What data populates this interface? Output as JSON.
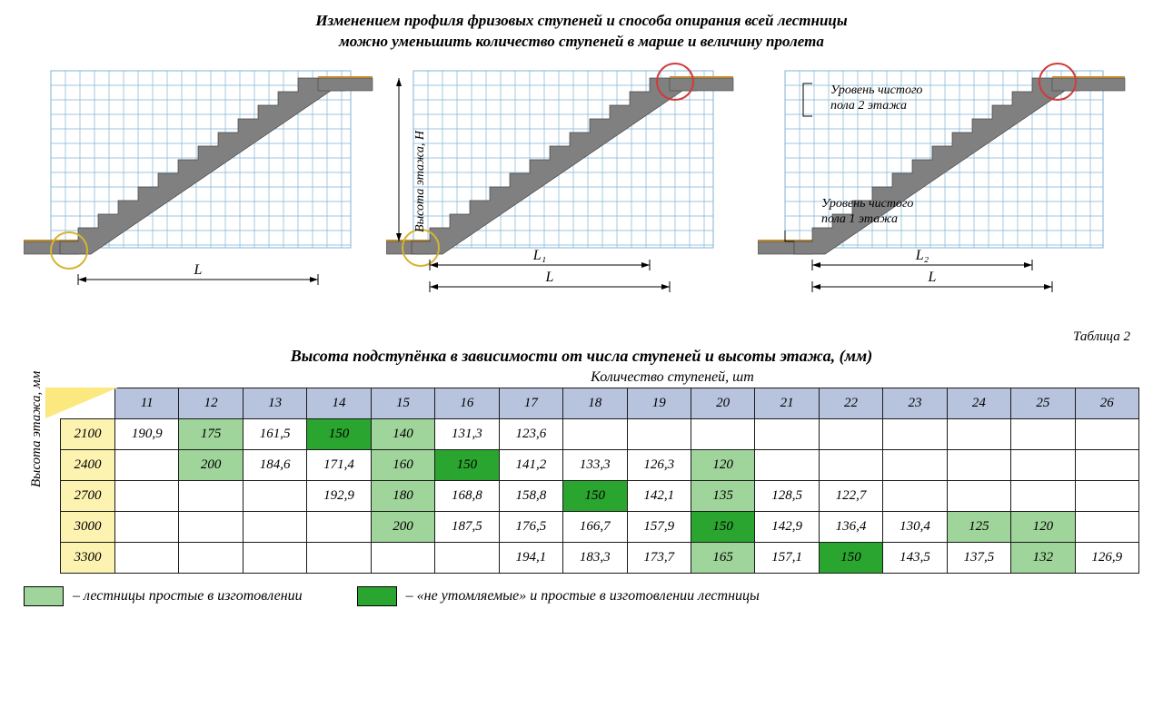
{
  "title_line1": "Изменением профиля фризовых ступеней и способа опирания всей лестницы",
  "title_line2": "можно уменьшить количество ступеней в марше и величину пролета",
  "height_axis_label": "Высота этажа, Н",
  "diagram_labels": {
    "d1_main": "L",
    "d2_main": "L",
    "d2_sub": "L₁",
    "d3_main": "L",
    "d3_sub": "L₂"
  },
  "floor_labels": {
    "floor2": "Уровень чистого\nпола 2 этажа",
    "floor1": "Уровень чистого\nпола 1 этажа"
  },
  "table_number": "Таблица 2",
  "table_title": "Высота подступёнка  в зависимости от числа ступеней и высоты этажа,  (мм)",
  "table_sup": "Количество ступеней, шт",
  "side_axis_label": "Высота этажа, мм",
  "columns": [
    "11",
    "12",
    "13",
    "14",
    "15",
    "16",
    "17",
    "18",
    "19",
    "20",
    "21",
    "22",
    "23",
    "24",
    "25",
    "26"
  ],
  "rows": [
    {
      "h": "2100",
      "cells": [
        {
          "v": "190,9",
          "c": 0
        },
        {
          "v": "175",
          "c": 1
        },
        {
          "v": "161,5",
          "c": 0
        },
        {
          "v": "150",
          "c": 2
        },
        {
          "v": "140",
          "c": 1
        },
        {
          "v": "131,3",
          "c": 0
        },
        {
          "v": "123,6",
          "c": 0
        },
        {
          "v": "",
          "c": 0
        },
        {
          "v": "",
          "c": 0
        },
        {
          "v": "",
          "c": 0
        },
        {
          "v": "",
          "c": 0
        },
        {
          "v": "",
          "c": 0
        },
        {
          "v": "",
          "c": 0
        },
        {
          "v": "",
          "c": 0
        },
        {
          "v": "",
          "c": 0
        },
        {
          "v": "",
          "c": 0
        }
      ]
    },
    {
      "h": "2400",
      "cells": [
        {
          "v": "",
          "c": 0
        },
        {
          "v": "200",
          "c": 1
        },
        {
          "v": "184,6",
          "c": 0
        },
        {
          "v": "171,4",
          "c": 0
        },
        {
          "v": "160",
          "c": 1
        },
        {
          "v": "150",
          "c": 2
        },
        {
          "v": "141,2",
          "c": 0
        },
        {
          "v": "133,3",
          "c": 0
        },
        {
          "v": "126,3",
          "c": 0
        },
        {
          "v": "120",
          "c": 1
        },
        {
          "v": "",
          "c": 0
        },
        {
          "v": "",
          "c": 0
        },
        {
          "v": "",
          "c": 0
        },
        {
          "v": "",
          "c": 0
        },
        {
          "v": "",
          "c": 0
        },
        {
          "v": "",
          "c": 0
        }
      ]
    },
    {
      "h": "2700",
      "cells": [
        {
          "v": "",
          "c": 0
        },
        {
          "v": "",
          "c": 0
        },
        {
          "v": "",
          "c": 0
        },
        {
          "v": "192,9",
          "c": 0
        },
        {
          "v": "180",
          "c": 1
        },
        {
          "v": "168,8",
          "c": 0
        },
        {
          "v": "158,8",
          "c": 0
        },
        {
          "v": "150",
          "c": 2
        },
        {
          "v": "142,1",
          "c": 0
        },
        {
          "v": "135",
          "c": 1
        },
        {
          "v": "128,5",
          "c": 0
        },
        {
          "v": "122,7",
          "c": 0
        },
        {
          "v": "",
          "c": 0
        },
        {
          "v": "",
          "c": 0
        },
        {
          "v": "",
          "c": 0
        },
        {
          "v": "",
          "c": 0
        }
      ]
    },
    {
      "h": "3000",
      "cells": [
        {
          "v": "",
          "c": 0
        },
        {
          "v": "",
          "c": 0
        },
        {
          "v": "",
          "c": 0
        },
        {
          "v": "",
          "c": 0
        },
        {
          "v": "200",
          "c": 1
        },
        {
          "v": "187,5",
          "c": 0
        },
        {
          "v": "176,5",
          "c": 0
        },
        {
          "v": "166,7",
          "c": 0
        },
        {
          "v": "157,9",
          "c": 0
        },
        {
          "v": "150",
          "c": 2
        },
        {
          "v": "142,9",
          "c": 0
        },
        {
          "v": "136,4",
          "c": 0
        },
        {
          "v": "130,4",
          "c": 0
        },
        {
          "v": "125",
          "c": 1
        },
        {
          "v": "120",
          "c": 1
        },
        {
          "v": "",
          "c": 0
        }
      ]
    },
    {
      "h": "3300",
      "cells": [
        {
          "v": "",
          "c": 0
        },
        {
          "v": "",
          "c": 0
        },
        {
          "v": "",
          "c": 0
        },
        {
          "v": "",
          "c": 0
        },
        {
          "v": "",
          "c": 0
        },
        {
          "v": "",
          "c": 0
        },
        {
          "v": "194,1",
          "c": 0
        },
        {
          "v": "183,3",
          "c": 0
        },
        {
          "v": "173,7",
          "c": 0
        },
        {
          "v": "165",
          "c": 1
        },
        {
          "v": "157,1",
          "c": 0
        },
        {
          "v": "150",
          "c": 2
        },
        {
          "v": "143,5",
          "c": 0
        },
        {
          "v": "137,5",
          "c": 0
        },
        {
          "v": "132",
          "c": 1
        },
        {
          "v": "126,9",
          "c": 0
        }
      ]
    }
  ],
  "colors": {
    "none": "#ffffff",
    "light": "#9fd49a",
    "dark": "#2aa52f",
    "header_bg": "#b8c4de",
    "rowhead_bg": "#fdf3b0",
    "grid": "#7fb3d5",
    "stair": "#808080",
    "floor_line": "#c08a2a",
    "circle_red": "#d23a3a",
    "circle_yel": "#d6b430"
  },
  "legend": {
    "light_text": "– лестницы простые в изготовлении",
    "dark_text": "– «не утомляемые» и простые в изготовлении лестницы"
  }
}
